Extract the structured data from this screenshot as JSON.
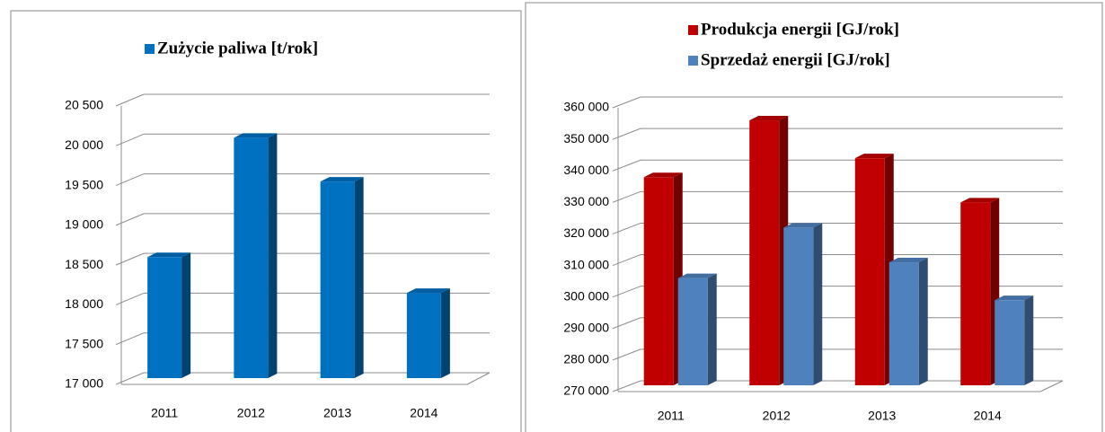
{
  "chart_data": [
    {
      "type": "bar",
      "categories": [
        "2011",
        "2012",
        "2013",
        "2014"
      ],
      "series": [
        {
          "name": "Zużycie paliwa [t/rok]",
          "color": "#0070c0",
          "values": [
            18600,
            20100,
            19550,
            18150
          ]
        }
      ],
      "ylim": [
        17000,
        20500
      ],
      "yticks": [
        {
          "value": 17000,
          "label": "17 000"
        },
        {
          "value": 17500,
          "label": "17 500"
        },
        {
          "value": 18000,
          "label": "18 000"
        },
        {
          "value": 18500,
          "label": "18 500"
        },
        {
          "value": 19000,
          "label": "19 000"
        },
        {
          "value": 19500,
          "label": "19 500"
        },
        {
          "value": 20000,
          "label": "20 000"
        },
        {
          "value": 20500,
          "label": "20 500"
        }
      ],
      "grid": true,
      "legend": "top"
    },
    {
      "type": "bar",
      "categories": [
        "2011",
        "2012",
        "2013",
        "2014"
      ],
      "series": [
        {
          "name": "Produkcja energii [GJ/rok]",
          "color": "#c00000",
          "values": [
            338000,
            356000,
            344000,
            330000
          ]
        },
        {
          "name": "Sprzedaż energii [GJ/rok]",
          "color": "#4f81bd",
          "values": [
            306000,
            322000,
            311000,
            299000
          ]
        }
      ],
      "ylim": [
        270000,
        360000
      ],
      "yticks": [
        {
          "value": 270000,
          "label": "270 000"
        },
        {
          "value": 280000,
          "label": "280 000"
        },
        {
          "value": 290000,
          "label": "290 000"
        },
        {
          "value": 300000,
          "label": "300 000"
        },
        {
          "value": 310000,
          "label": "310 000"
        },
        {
          "value": 320000,
          "label": "320 000"
        },
        {
          "value": 330000,
          "label": "330 000"
        },
        {
          "value": 340000,
          "label": "340 000"
        },
        {
          "value": 350000,
          "label": "350 000"
        },
        {
          "value": 360000,
          "label": "360 000"
        }
      ],
      "grid": true,
      "legend": "top"
    }
  ]
}
